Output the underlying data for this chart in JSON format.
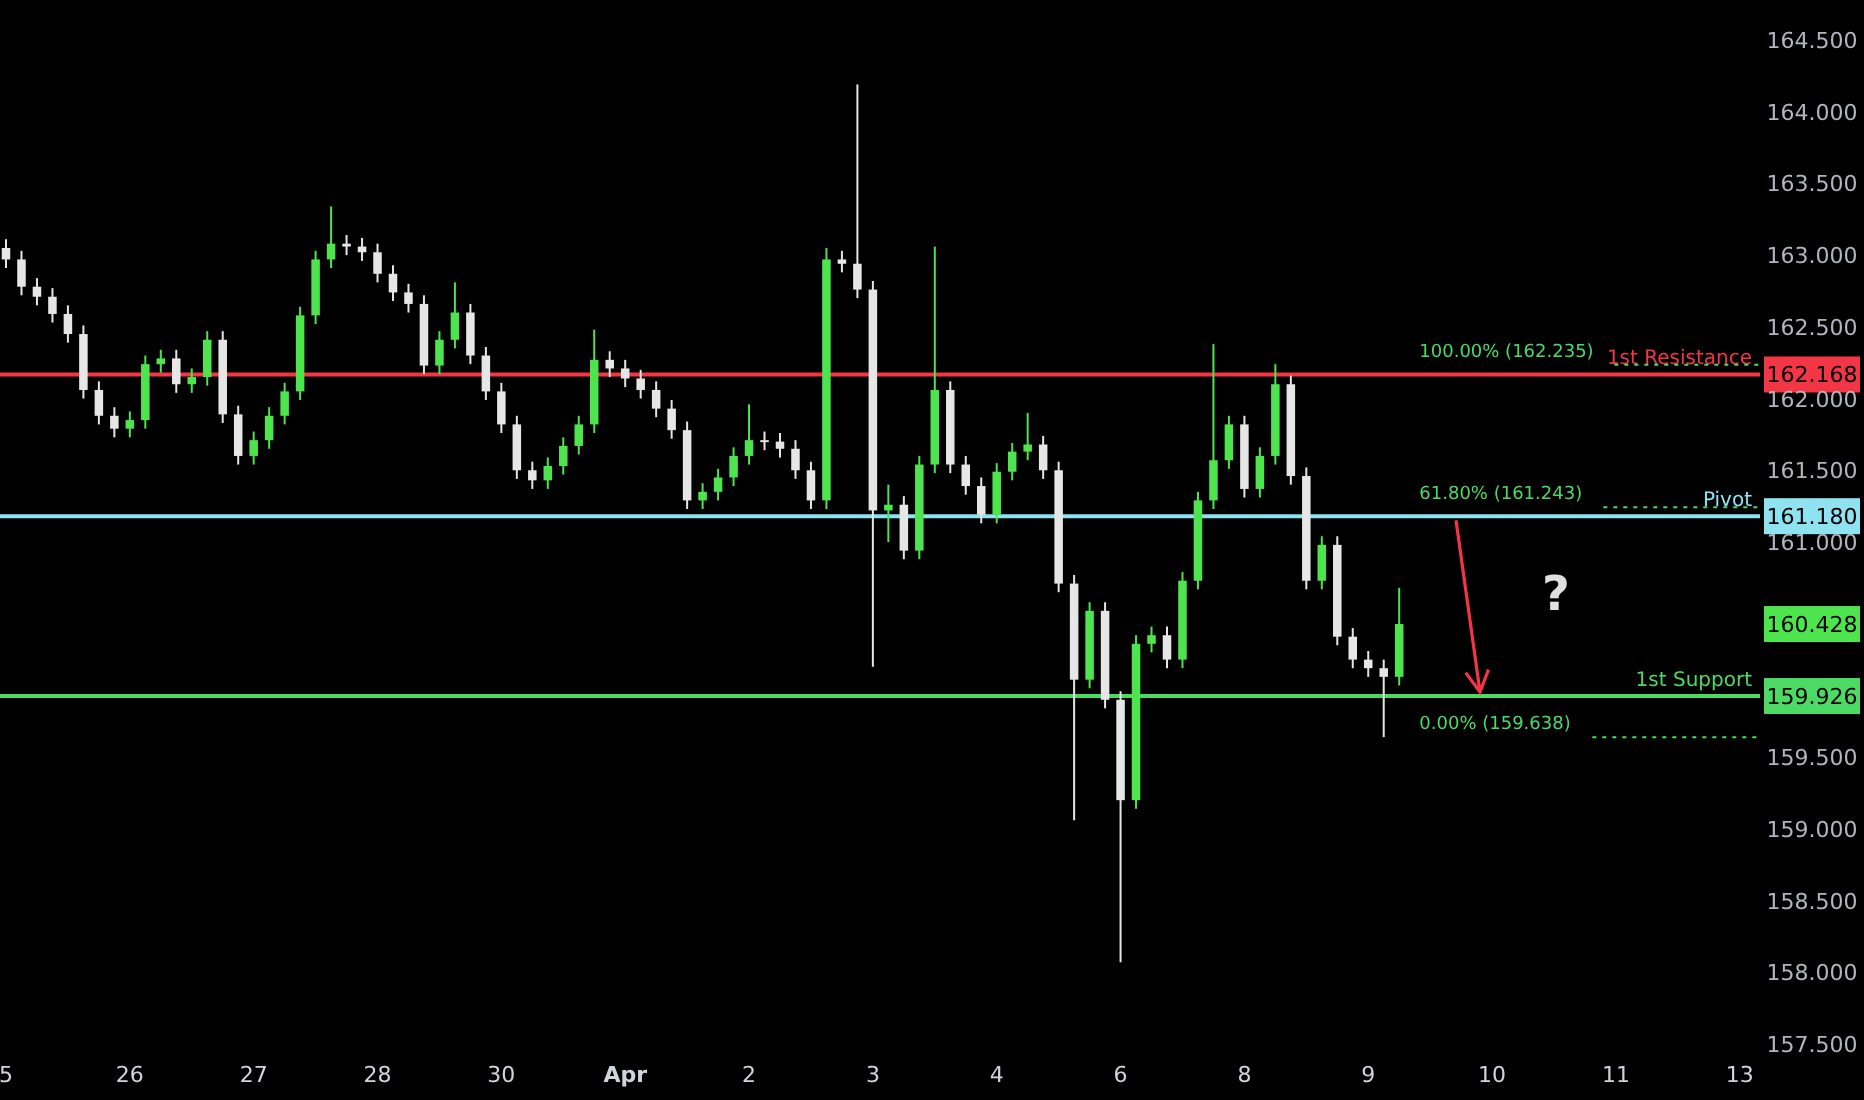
{
  "chart_data": {
    "type": "candlestick",
    "categories": [
      "5",
      null,
      null,
      null,
      null,
      null,
      null,
      null,
      "26",
      null,
      null,
      null,
      null,
      null,
      null,
      null,
      "27",
      null,
      null,
      null,
      null,
      null,
      null,
      null,
      "28",
      null,
      null,
      null,
      null,
      null,
      null,
      null,
      "30",
      null,
      null,
      null,
      null,
      null,
      null,
      null,
      "Apr",
      null,
      null,
      null,
      null,
      null,
      null,
      null,
      "2",
      null,
      null,
      null,
      null,
      null,
      null,
      null,
      "3",
      null,
      null,
      null,
      null,
      null,
      null,
      null,
      "4",
      null,
      null,
      null,
      null,
      null,
      null,
      null,
      "6",
      null,
      null,
      null,
      null,
      null,
      null,
      null,
      "8",
      null,
      null,
      null,
      null,
      null,
      null,
      null,
      "9",
      null,
      null,
      null,
      null,
      null,
      null,
      null,
      "10",
      null,
      null,
      null,
      null,
      null,
      null,
      null,
      "11",
      null,
      null,
      null,
      null,
      null,
      null,
      null,
      "13",
      null
    ],
    "ohlc": [
      [
        163.05,
        163.11,
        162.91,
        162.97
      ],
      [
        162.97,
        163.03,
        162.72,
        162.78
      ],
      [
        162.78,
        162.84,
        162.65,
        162.71
      ],
      [
        162.71,
        162.77,
        162.53,
        162.59
      ],
      [
        162.59,
        162.65,
        162.39,
        162.45
      ],
      [
        162.45,
        162.51,
        162.0,
        162.06
      ],
      [
        162.06,
        162.12,
        161.82,
        161.88
      ],
      [
        161.88,
        161.94,
        161.73,
        161.79
      ],
      [
        161.79,
        161.91,
        161.73,
        161.85
      ],
      [
        161.85,
        162.3,
        161.79,
        162.24
      ],
      [
        162.24,
        162.34,
        162.18,
        162.28
      ],
      [
        162.28,
        162.34,
        162.04,
        162.1
      ],
      [
        162.1,
        162.21,
        162.04,
        162.15
      ],
      [
        162.15,
        162.47,
        162.09,
        162.41
      ],
      [
        162.41,
        162.47,
        161.83,
        161.89
      ],
      [
        161.89,
        161.95,
        161.54,
        161.6
      ],
      [
        161.6,
        161.77,
        161.54,
        161.71
      ],
      [
        161.71,
        161.94,
        161.65,
        161.88
      ],
      [
        161.88,
        162.11,
        161.82,
        162.05
      ],
      [
        162.05,
        162.64,
        161.99,
        162.58
      ],
      [
        162.58,
        163.03,
        162.52,
        162.97
      ],
      [
        162.97,
        163.34,
        162.91,
        163.08
      ],
      [
        163.08,
        163.14,
        163.0,
        163.06
      ],
      [
        163.06,
        163.12,
        162.96,
        163.02
      ],
      [
        163.02,
        163.08,
        162.81,
        162.87
      ],
      [
        162.87,
        162.93,
        162.68,
        162.74
      ],
      [
        162.74,
        162.8,
        162.6,
        162.66
      ],
      [
        162.66,
        162.72,
        162.17,
        162.23
      ],
      [
        162.23,
        162.47,
        162.17,
        162.41
      ],
      [
        162.41,
        162.81,
        162.35,
        162.6
      ],
      [
        162.6,
        162.66,
        162.24,
        162.3
      ],
      [
        162.3,
        162.36,
        161.99,
        162.05
      ],
      [
        162.05,
        162.11,
        161.76,
        161.82
      ],
      [
        161.82,
        161.88,
        161.44,
        161.5
      ],
      [
        161.5,
        161.56,
        161.37,
        161.43
      ],
      [
        161.43,
        161.59,
        161.37,
        161.53
      ],
      [
        161.53,
        161.73,
        161.47,
        161.67
      ],
      [
        161.67,
        161.88,
        161.61,
        161.82
      ],
      [
        161.82,
        162.48,
        161.76,
        162.27
      ],
      [
        162.27,
        162.33,
        162.15,
        162.21
      ],
      [
        162.21,
        162.27,
        162.08,
        162.14
      ],
      [
        162.14,
        162.2,
        162.0,
        162.06
      ],
      [
        162.06,
        162.12,
        161.87,
        161.93
      ],
      [
        161.93,
        161.99,
        161.72,
        161.78
      ],
      [
        161.78,
        161.84,
        161.23,
        161.29
      ],
      [
        161.29,
        161.41,
        161.23,
        161.35
      ],
      [
        161.35,
        161.51,
        161.29,
        161.45
      ],
      [
        161.45,
        161.66,
        161.39,
        161.6
      ],
      [
        161.6,
        161.96,
        161.54,
        161.71
      ],
      [
        161.71,
        161.77,
        161.64,
        161.7
      ],
      [
        161.7,
        161.76,
        161.59,
        161.65
      ],
      [
        161.65,
        161.71,
        161.44,
        161.5
      ],
      [
        161.5,
        161.56,
        161.23,
        161.29
      ],
      [
        161.29,
        163.05,
        161.23,
        162.97
      ],
      [
        162.97,
        163.03,
        162.88,
        162.94
      ],
      [
        162.94,
        164.19,
        162.7,
        162.76
      ],
      [
        162.76,
        162.82,
        160.13,
        161.22
      ],
      [
        161.22,
        161.4,
        161.0,
        161.26
      ],
      [
        161.26,
        161.32,
        160.88,
        160.94
      ],
      [
        160.94,
        161.6,
        160.88,
        161.54
      ],
      [
        161.54,
        163.06,
        161.48,
        162.06
      ],
      [
        162.06,
        162.12,
        161.48,
        161.54
      ],
      [
        161.54,
        161.6,
        161.33,
        161.39
      ],
      [
        161.39,
        161.45,
        161.13,
        161.19
      ],
      [
        161.19,
        161.55,
        161.13,
        161.49
      ],
      [
        161.49,
        161.69,
        161.43,
        161.63
      ],
      [
        161.63,
        161.9,
        161.57,
        161.68
      ],
      [
        161.68,
        161.74,
        161.44,
        161.5
      ],
      [
        161.5,
        161.56,
        160.65,
        160.71
      ],
      [
        160.71,
        160.77,
        159.06,
        160.04
      ],
      [
        160.04,
        160.58,
        159.98,
        160.52
      ],
      [
        160.52,
        160.58,
        159.84,
        159.9
      ],
      [
        159.9,
        159.96,
        158.07,
        159.2
      ],
      [
        159.2,
        160.35,
        159.14,
        160.29
      ],
      [
        160.29,
        160.41,
        160.23,
        160.35
      ],
      [
        160.35,
        160.41,
        160.12,
        160.18
      ],
      [
        160.18,
        160.79,
        160.12,
        160.73
      ],
      [
        160.73,
        161.35,
        160.67,
        161.29
      ],
      [
        161.29,
        162.38,
        161.23,
        161.57
      ],
      [
        161.57,
        161.88,
        161.51,
        161.82
      ],
      [
        161.82,
        161.88,
        161.31,
        161.37
      ],
      [
        161.37,
        161.66,
        161.31,
        161.6
      ],
      [
        161.6,
        162.24,
        161.54,
        162.1
      ],
      [
        162.1,
        162.16,
        161.4,
        161.46
      ],
      [
        161.46,
        161.52,
        160.67,
        160.73
      ],
      [
        160.73,
        161.04,
        160.67,
        160.98
      ],
      [
        160.98,
        161.04,
        160.28,
        160.34
      ],
      [
        160.34,
        160.4,
        160.12,
        160.18
      ],
      [
        160.18,
        160.24,
        160.06,
        160.12
      ],
      [
        160.12,
        160.18,
        159.64,
        160.06
      ],
      [
        160.06,
        160.68,
        160.0,
        160.428
      ],
      null,
      null,
      null,
      null,
      null,
      null,
      null,
      null,
      null,
      null,
      null,
      null,
      null,
      null,
      null,
      null,
      null,
      null,
      null,
      null,
      null,
      null,
      null
    ],
    "colors": [
      "#e6e6e6",
      "#e6e6e6",
      "#e6e6e6",
      "#e6e6e6",
      "#e6e6e6",
      "#e6e6e6",
      "#e6e6e6",
      "#e6e6e6",
      "#4ee44e",
      "#4ee44e",
      "#4ee44e",
      "#e6e6e6",
      "#4ee44e",
      "#4ee44e",
      "#e6e6e6",
      "#e6e6e6",
      "#4ee44e",
      "#4ee44e",
      "#4ee44e",
      "#4ee44e",
      "#4ee44e",
      "#4ee44e",
      "#e6e6e6",
      "#e6e6e6",
      "#e6e6e6",
      "#e6e6e6",
      "#e6e6e6",
      "#e6e6e6",
      "#4ee44e",
      "#4ee44e",
      "#e6e6e6",
      "#e6e6e6",
      "#e6e6e6",
      "#e6e6e6",
      "#e6e6e6",
      "#4ee44e",
      "#4ee44e",
      "#4ee44e",
      "#4ee44e",
      "#e6e6e6",
      "#e6e6e6",
      "#e6e6e6",
      "#e6e6e6",
      "#e6e6e6",
      "#e6e6e6",
      "#4ee44e",
      "#4ee44e",
      "#4ee44e",
      "#4ee44e",
      "#e6e6e6",
      "#e6e6e6",
      "#e6e6e6",
      "#e6e6e6",
      "#4ee44e",
      "#e6e6e6",
      "#e6e6e6",
      "#e6e6e6",
      "#4ee44e",
      "#e6e6e6",
      "#4ee44e",
      "#4ee44e",
      "#e6e6e6",
      "#e6e6e6",
      "#e6e6e6",
      "#4ee44e",
      "#4ee44e",
      "#4ee44e",
      "#e6e6e6",
      "#e6e6e6",
      "#e6e6e6",
      "#4ee44e",
      "#e6e6e6",
      "#e6e6e6",
      "#4ee44e",
      "#4ee44e",
      "#e6e6e6",
      "#4ee44e",
      "#4ee44e",
      "#4ee44e",
      "#4ee44e",
      "#e6e6e6",
      "#4ee44e",
      "#4ee44e",
      "#e6e6e6",
      "#e6e6e6",
      "#4ee44e",
      "#e6e6e6",
      "#e6e6e6",
      "#e6e6e6",
      "#e6e6e6",
      "#4ee44e",
      null,
      null,
      null,
      null,
      null,
      null,
      null,
      null,
      null,
      null,
      null,
      null,
      null,
      null,
      null,
      null,
      null,
      null,
      null,
      null,
      null,
      null,
      null
    ],
    "ylim": [
      157.5,
      164.5
    ],
    "yticks": [
      {
        "value": 157.5,
        "label": "157.500"
      },
      {
        "value": 158,
        "label": "158.000"
      },
      {
        "value": 158.5,
        "label": "158.500"
      },
      {
        "value": 159,
        "label": "159.000"
      },
      {
        "value": 159.5,
        "label": "159.500"
      },
      {
        "value": 161,
        "label": "161.000"
      },
      {
        "value": 161.5,
        "label": "161.500"
      },
      {
        "value": 162,
        "label": "162.000"
      },
      {
        "value": 162.5,
        "label": "162.500"
      },
      {
        "value": 163,
        "label": "163.000"
      },
      {
        "value": 163.5,
        "label": "163.500"
      },
      {
        "value": 164,
        "label": "164.000"
      },
      {
        "value": 164.5,
        "label": "164.500"
      }
    ],
    "ref_lines": [
      {
        "axis": "y",
        "value": 162.168,
        "label": "1st Resistance",
        "color": "#f23645",
        "line_style": "solid"
      },
      {
        "axis": "y",
        "value": 161.18,
        "label": "Pivot",
        "color": "#8fe3f0",
        "line_style": "solid"
      },
      {
        "axis": "y",
        "value": 159.926,
        "label": "1st Support",
        "color": "#4cd964",
        "line_style": "solid"
      },
      {
        "axis": "y",
        "value": 162.235,
        "label": "100.00% (162.235)",
        "color": "#4cd964",
        "line_style": "dotted"
      },
      {
        "axis": "y",
        "value": 161.243,
        "label": "61.80% (161.243)",
        "color": "#4cd964",
        "line_style": "dotted"
      },
      {
        "axis": "y",
        "value": 159.638,
        "label": "0.00% (159.638)",
        "color": "#4cd964",
        "line_style": "dotted"
      }
    ],
    "annotations": [
      "162.168",
      "161.180",
      "159.926",
      "160.428",
      "?"
    ],
    "grid": false
  }
}
